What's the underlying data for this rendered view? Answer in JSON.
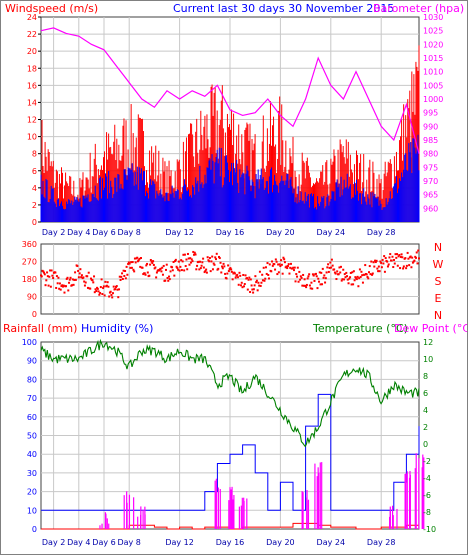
{
  "header": {
    "title": "Current last 30 days 30 November 2015",
    "wind_label": "Windspeed (m/s)",
    "baro_label": "Barometer (hpa)"
  },
  "lower_header": {
    "rain_label": "Rainfall (mm)",
    "hum_label": "Humidity (%)",
    "temp_label": "Temperature (°C)",
    "dew_label": "Dew Point (°C)"
  },
  "x_day_labels": [
    "Day 2",
    "Day 4",
    "Day 6",
    "Day 8",
    "Day 12",
    "Day 16",
    "Day 20",
    "Day 24",
    "Day 28"
  ],
  "colors": {
    "wind": "#ff0000",
    "wind_avg": "#0000ff",
    "baro": "#ff00ff",
    "direction": "#ff0000",
    "rain_axis": "#ff0000",
    "humidity": "#0000ff",
    "temperature": "#008000",
    "dewpoint": "#ff00ff",
    "title": "#0000ff"
  },
  "chart_data": [
    {
      "type": "line",
      "name": "wind",
      "title": "Current last 30 days 30 November 2015",
      "ylabel": "Windspeed (m/s)",
      "ylim": [
        0,
        24
      ],
      "yticks": [
        0,
        2,
        4,
        6,
        8,
        10,
        12,
        14,
        16,
        18,
        20,
        22,
        24
      ],
      "y2label": "Barometer (hpa)",
      "y2lim": [
        955,
        1030
      ],
      "y2ticks": [
        960,
        965,
        970,
        975,
        980,
        985,
        990,
        995,
        1000,
        1005,
        1010,
        1015,
        1020,
        1025,
        1030
      ],
      "x": [
        1,
        2,
        3,
        4,
        5,
        6,
        7,
        8,
        9,
        10,
        11,
        12,
        13,
        14,
        15,
        16,
        17,
        18,
        19,
        20,
        21,
        22,
        23,
        24,
        25,
        26,
        27,
        28,
        29,
        30,
        31
      ],
      "series": [
        {
          "name": "gust",
          "values": [
            13,
            8,
            6,
            5,
            9,
            11,
            12,
            14,
            13,
            10,
            7,
            9,
            12,
            15,
            17,
            16,
            13,
            11,
            14,
            15,
            10,
            8,
            6,
            8,
            11,
            9,
            8,
            6,
            10,
            16,
            22
          ]
        },
        {
          "name": "average",
          "values": [
            6,
            4,
            3,
            3,
            5,
            6,
            6,
            7,
            7,
            5,
            4,
            5,
            6,
            8,
            9,
            8,
            7,
            6,
            7,
            7,
            5,
            4,
            3,
            4,
            6,
            5,
            4,
            3,
            5,
            9,
            11
          ]
        },
        {
          "name": "barometer",
          "values": [
            1025,
            1026,
            1024,
            1023,
            1020,
            1018,
            1012,
            1006,
            1000,
            997,
            1003,
            1000,
            1003,
            1001,
            1005,
            996,
            994,
            995,
            1000,
            994,
            990,
            1000,
            1015,
            1005,
            1000,
            1010,
            1000,
            990,
            985,
            998,
            980
          ]
        }
      ]
    },
    {
      "type": "scatter",
      "name": "wind_direction",
      "ylim": [
        0,
        360
      ],
      "yticks": [
        0,
        90,
        180,
        270,
        360
      ],
      "compass_labels": [
        "N",
        "W",
        "S",
        "E",
        "N"
      ],
      "x": [
        1,
        2,
        3,
        4,
        5,
        6,
        7,
        8,
        9,
        10,
        11,
        12,
        13,
        14,
        15,
        16,
        17,
        18,
        19,
        20,
        21,
        22,
        23,
        24,
        25,
        26,
        27,
        28,
        29,
        30,
        31
      ],
      "values": [
        200,
        180,
        150,
        220,
        160,
        130,
        110,
        270,
        250,
        230,
        210,
        260,
        280,
        250,
        270,
        200,
        170,
        150,
        220,
        260,
        210,
        180,
        160,
        240,
        200,
        180,
        220,
        250,
        270,
        280,
        290
      ]
    },
    {
      "type": "line",
      "name": "rain_humidity_temperature",
      "ylabel": "Rainfall (mm)",
      "ylim": [
        0,
        100
      ],
      "yticks": [
        0,
        10,
        20,
        30,
        40,
        50,
        60,
        70,
        80,
        90,
        100
      ],
      "y2lim": [
        -10,
        12
      ],
      "y2ticks": [
        -10,
        -8,
        -6,
        -4,
        -2,
        0,
        2,
        4,
        6,
        8,
        10,
        12
      ],
      "x": [
        1,
        2,
        3,
        4,
        5,
        6,
        7,
        8,
        9,
        10,
        11,
        12,
        13,
        14,
        15,
        16,
        17,
        18,
        19,
        20,
        21,
        22,
        23,
        24,
        25,
        26,
        27,
        28,
        29,
        30,
        31
      ],
      "series": [
        {
          "name": "Rainfall (mm)",
          "values": [
            0,
            0,
            0,
            0,
            0,
            0,
            0,
            2,
            2,
            1,
            0,
            1,
            0,
            1,
            1,
            0,
            1,
            1,
            1,
            1,
            3,
            3,
            2,
            1,
            1,
            0,
            0,
            1,
            1,
            2,
            2
          ]
        },
        {
          "name": "Humidity (%)",
          "values": [
            10,
            10,
            10,
            10,
            10,
            10,
            10,
            10,
            10,
            10,
            10,
            10,
            10,
            20,
            35,
            40,
            45,
            30,
            10,
            25,
            10,
            55,
            72,
            10,
            10,
            10,
            10,
            10,
            25,
            40,
            55
          ]
        },
        {
          "name": "Temperature (°C)",
          "values": [
            11,
            10,
            10,
            10,
            11,
            12,
            11,
            9,
            11,
            11,
            10,
            11,
            10,
            10,
            7,
            8,
            6,
            8,
            6,
            4,
            2,
            0,
            2,
            5,
            8,
            9,
            8,
            5,
            7,
            6,
            6
          ]
        },
        {
          "name": "Dew Point (°C)",
          "values": [
            -10,
            -10,
            -10,
            -10,
            -10,
            -9,
            -10,
            -6,
            -8,
            -10,
            -10,
            -10,
            -10,
            -10,
            -5,
            -6,
            -7,
            -10,
            -10,
            -10,
            -10,
            -6,
            -3,
            -10,
            -10,
            -10,
            -10,
            -10,
            -8,
            -4,
            -2
          ]
        }
      ]
    }
  ]
}
